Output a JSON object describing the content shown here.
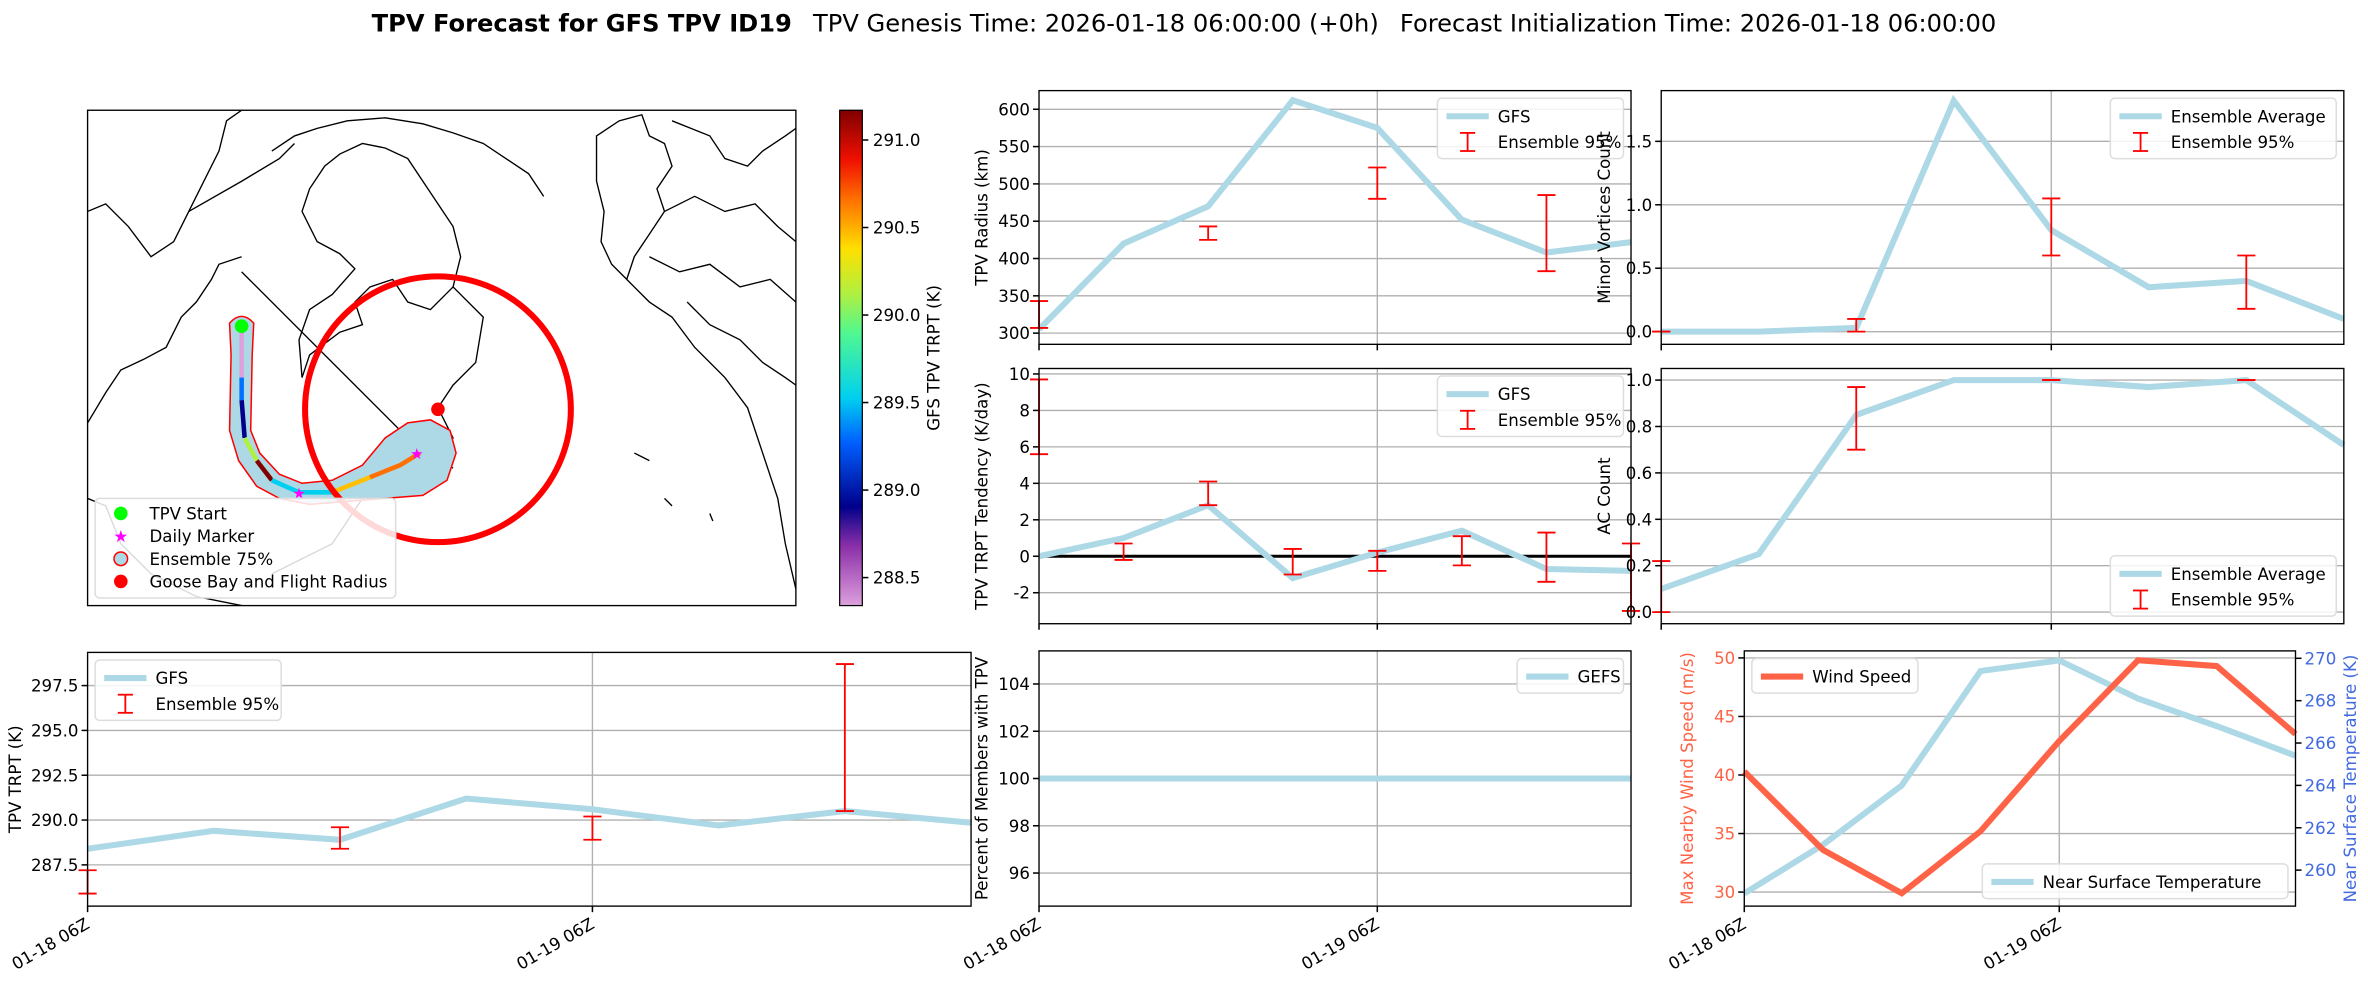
{
  "title": {
    "bold": "TPV Forecast for GFS TPV ID19",
    "genesis": "TPV Genesis Time: 2026-01-18 06:00:00 (+0h)",
    "init": "Forecast Initialization Time: 2026-01-18 06:00:00"
  },
  "map": {
    "legend": [
      "TPV Start",
      "Daily Marker",
      "Ensemble 75%",
      "Goose Bay and Flight Radius"
    ],
    "colorbar": {
      "label": "GFS TPV TRPT (K)",
      "range": [
        288.34,
        291.17
      ],
      "ticks": [
        "288.5",
        "289.0",
        "289.5",
        "290.0",
        "290.5",
        "291.0"
      ]
    },
    "colors": {
      "start": "#00ff00",
      "marker": "#ff00ff",
      "ensemble_fill": "#add8e6",
      "ensemble_edge": "#ff0000",
      "goose_bay": "#ff0000"
    }
  },
  "x_tick_labels": [
    "01-18 06Z",
    "01-19 06Z"
  ],
  "chart_data": [
    {
      "id": "radius",
      "type": "line",
      "ylabel": "TPV Radius (km)",
      "x": [
        0,
        6,
        12,
        18,
        24,
        30,
        36,
        42
      ],
      "xlim": [
        0,
        42
      ],
      "ylim": [
        285,
        625
      ],
      "yticks": [
        "300",
        "350",
        "400",
        "450",
        "500",
        "550",
        "600"
      ],
      "series": [
        {
          "name": "GFS",
          "values": [
            305,
            420,
            470,
            612,
            575,
            452,
            408,
            422
          ],
          "color": "#add8e6"
        }
      ],
      "errorbars": {
        "name": "Ensemble 95%",
        "x": [
          0,
          12,
          24,
          36
        ],
        "ranges": [
          [
            307,
            343
          ],
          [
            425,
            443
          ],
          [
            480,
            522
          ],
          [
            383,
            485
          ]
        ],
        "color": "#ff0000"
      },
      "legend": "upper-right",
      "xticklabels": false
    },
    {
      "id": "tendency",
      "type": "line",
      "ylabel": "TPV TRPT Tendency (K/day)",
      "x": [
        0,
        6,
        12,
        18,
        24,
        30,
        36,
        42
      ],
      "xlim": [
        0,
        42
      ],
      "ylim": [
        -3.7,
        10.3
      ],
      "yticks": [
        "-2",
        "0",
        "2",
        "4",
        "6",
        "8",
        "10"
      ],
      "hline": 0,
      "series": [
        {
          "name": "GFS",
          "values": [
            0,
            1.0,
            2.8,
            -1.2,
            0.2,
            1.4,
            -0.7,
            -0.8
          ],
          "color": "#add8e6"
        }
      ],
      "errorbars": {
        "name": "Ensemble 95%",
        "x": [
          0,
          6,
          12,
          18,
          24,
          30,
          36,
          42
        ],
        "ranges": [
          [
            5.6,
            9.7
          ],
          [
            -0.2,
            0.7
          ],
          [
            2.8,
            4.1
          ],
          [
            -1.0,
            0.4
          ],
          [
            -0.8,
            0.3
          ],
          [
            -0.5,
            1.1
          ],
          [
            -1.4,
            1.3
          ],
          [
            -3.0,
            0.7
          ]
        ],
        "color": "#ff0000"
      },
      "legend": "upper-right",
      "xticklabels": false
    },
    {
      "id": "percent",
      "type": "line",
      "ylabel": "Percent of Members with TPV",
      "x": [
        0,
        6,
        12,
        18,
        24,
        30,
        36,
        42
      ],
      "xlim": [
        0,
        42
      ],
      "ylim": [
        94.6,
        105.4
      ],
      "yticks": [
        "96",
        "98",
        "100",
        "102",
        "104"
      ],
      "series": [
        {
          "name": "GEFS",
          "values": [
            100,
            100,
            100,
            100,
            100,
            100,
            100,
            100
          ],
          "color": "#add8e6"
        }
      ],
      "legend": "upper-right",
      "xticklabels": true
    },
    {
      "id": "minor",
      "type": "line",
      "ylabel": "Minor Vortices Count",
      "x": [
        0,
        6,
        12,
        18,
        24,
        30,
        36,
        42
      ],
      "xlim": [
        0,
        42
      ],
      "ylim": [
        -0.1,
        1.9
      ],
      "yticks": [
        "0.0",
        "0.5",
        "1.0",
        "1.5"
      ],
      "series": [
        {
          "name": "Ensemble Average",
          "values": [
            0,
            0,
            0.03,
            1.82,
            0.8,
            0.35,
            0.4,
            0.1
          ],
          "color": "#add8e6"
        }
      ],
      "errorbars": {
        "name": "Ensemble 95%",
        "x": [
          0,
          12,
          24,
          36
        ],
        "ranges": [
          [
            0,
            0
          ],
          [
            0,
            0.1
          ],
          [
            0.6,
            1.05
          ],
          [
            0.18,
            0.6
          ]
        ],
        "color": "#ff0000"
      },
      "legend": "upper-right",
      "xticklabels": false
    },
    {
      "id": "ac",
      "type": "line",
      "ylabel": "AC Count",
      "x": [
        0,
        6,
        12,
        18,
        24,
        30,
        36,
        42
      ],
      "xlim": [
        0,
        42
      ],
      "ylim": [
        -0.05,
        1.05
      ],
      "yticks": [
        "0.0",
        "0.2",
        "0.4",
        "0.6",
        "0.8",
        "1.0"
      ],
      "series": [
        {
          "name": "Ensemble Average",
          "values": [
            0.1,
            0.25,
            0.85,
            1.0,
            1.0,
            0.97,
            1.0,
            0.72
          ],
          "color": "#add8e6"
        }
      ],
      "errorbars": {
        "name": "Ensemble 95%",
        "x": [
          0,
          12,
          24,
          36
        ],
        "ranges": [
          [
            0,
            0.22
          ],
          [
            0.7,
            0.97
          ],
          [
            1.0,
            1.0
          ],
          [
            1.0,
            1.0
          ]
        ],
        "color": "#ff0000"
      },
      "legend": "lower-right",
      "xticklabels": false
    },
    {
      "id": "trpt",
      "type": "line",
      "ylabel": "TPV TRPT (K)",
      "x": [
        0,
        6,
        12,
        18,
        24,
        30,
        36,
        42
      ],
      "xlim": [
        0,
        42
      ],
      "ylim": [
        285.2,
        299.35
      ],
      "yticks": [
        "287.5",
        "290.0",
        "292.5",
        "295.0",
        "297.5"
      ],
      "series": [
        {
          "name": "GFS",
          "values": [
            288.4,
            289.4,
            288.9,
            291.2,
            290.6,
            289.7,
            290.5,
            289.85
          ],
          "color": "#add8e6"
        }
      ],
      "errorbars": {
        "name": "Ensemble 95%",
        "x": [
          0,
          12,
          24,
          36
        ],
        "ranges": [
          [
            285.9,
            287.2
          ],
          [
            288.4,
            289.6
          ],
          [
            288.9,
            290.2
          ],
          [
            290.5,
            298.7
          ]
        ],
        "color": "#ff0000"
      },
      "legend": "upper-left",
      "xticklabels": true
    },
    {
      "id": "wind",
      "type": "line",
      "ylabel": "Max Nearby Wind Speed (m/s)",
      "ylabel_color": "#ff6347",
      "x": [
        0,
        6,
        12,
        18,
        24,
        30,
        36,
        42
      ],
      "xlim": [
        0,
        42
      ],
      "ylim": [
        28.8,
        50.6
      ],
      "yticks": [
        "30",
        "35",
        "40",
        "45",
        "50"
      ],
      "series": [
        {
          "name": "Wind Speed",
          "values": [
            40.3,
            33.6,
            29.9,
            35.2,
            42.9,
            49.8,
            49.3,
            43.5
          ],
          "color": "#ff6347"
        }
      ],
      "legend": "upper-left",
      "xticklabels": true,
      "right_axis": {
        "ylabel": "Near Surface Temperature (K)",
        "color": "#4169e1",
        "ylim": [
          258.3,
          270.35
        ],
        "yticks": [
          "260",
          "262",
          "264",
          "266",
          "268",
          "270"
        ],
        "series": {
          "name": "Near Surface Temperature",
          "values": [
            258.9,
            261.2,
            264.0,
            269.4,
            269.9,
            268.1,
            266.8,
            265.4
          ],
          "color": "#add8e6"
        },
        "legend": "lower-right"
      }
    }
  ]
}
